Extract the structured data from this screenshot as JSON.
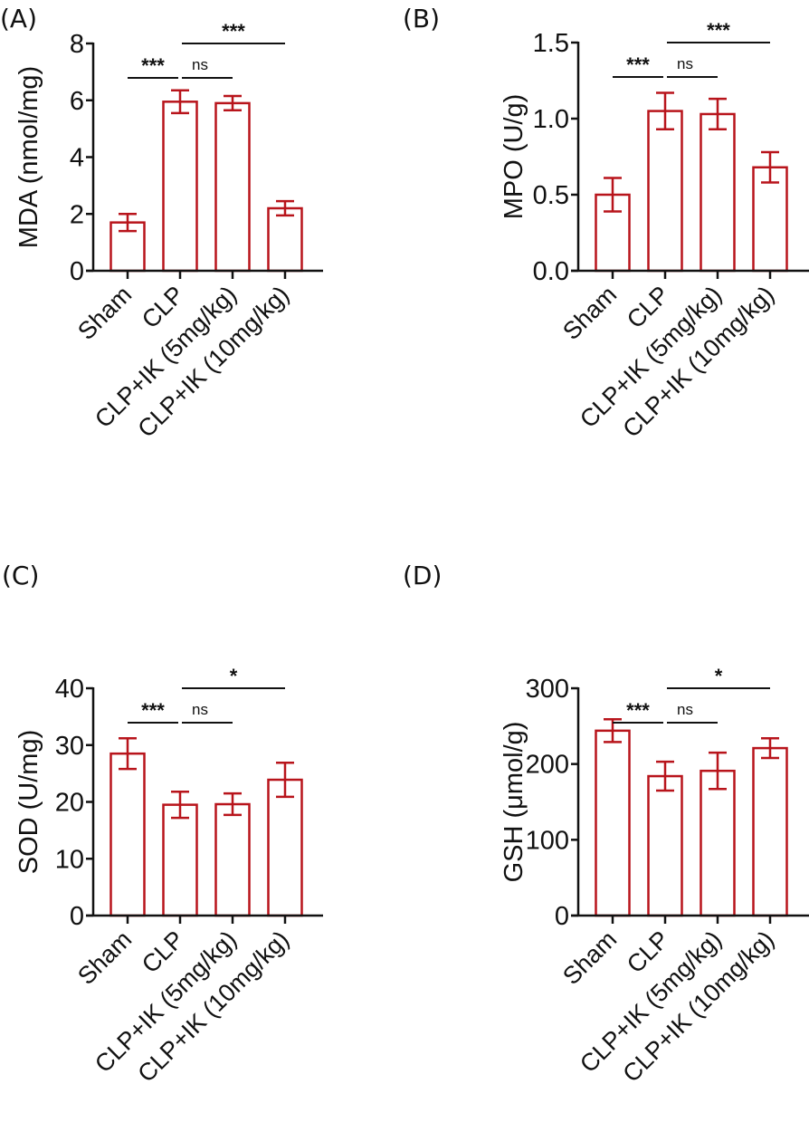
{
  "bar_color": "#B8141B",
  "axis_color": "#111111",
  "chart_data": [
    {
      "panel": "(A)",
      "type": "bar",
      "title": "",
      "xlabel": "",
      "ylabel": "MDA (nmol/mg)",
      "categories": [
        "Sham",
        "CLP",
        "CLP+IK (5mg/kg)",
        "CLP+IK (10mg/kg)"
      ],
      "values": [
        1.7,
        5.95,
        5.9,
        2.2
      ],
      "errors": [
        0.3,
        0.4,
        0.25,
        0.25
      ],
      "ylim": [
        0,
        8
      ],
      "yticks": [
        0,
        2,
        4,
        6,
        8
      ],
      "ytick_labels": [
        "0",
        "2",
        "4",
        "6",
        "8"
      ],
      "grid": false,
      "significance": [
        {
          "from": 0,
          "to": 1,
          "label": "***",
          "level": 1
        },
        {
          "from": 1,
          "to": 2,
          "label": "ns",
          "level": 1
        },
        {
          "from": 1,
          "to": 3,
          "label": "***",
          "level": 2
        }
      ]
    },
    {
      "panel": "(B)",
      "type": "bar",
      "title": "",
      "xlabel": "",
      "ylabel": "MPO (U/g)",
      "categories": [
        "Sham",
        "CLP",
        "CLP+IK (5mg/kg)",
        "CLP+IK (10mg/kg)"
      ],
      "values": [
        0.5,
        1.05,
        1.03,
        0.68
      ],
      "errors": [
        0.11,
        0.12,
        0.1,
        0.1
      ],
      "ylim": [
        0,
        1.5
      ],
      "yticks": [
        0,
        0.5,
        1.0,
        1.5
      ],
      "ytick_labels": [
        "0.0",
        "0.5",
        "1.0",
        "1.5"
      ],
      "grid": false,
      "significance": [
        {
          "from": 0,
          "to": 1,
          "label": "***",
          "level": 1
        },
        {
          "from": 1,
          "to": 2,
          "label": "ns",
          "level": 1
        },
        {
          "from": 1,
          "to": 3,
          "label": "***",
          "level": 2
        }
      ]
    },
    {
      "panel": "(C)",
      "type": "bar",
      "title": "",
      "xlabel": "",
      "ylabel": "SOD (U/mg)",
      "categories": [
        "Sham",
        "CLP",
        "CLP+IK (5mg/kg)",
        "CLP+IK (10mg/kg)"
      ],
      "values": [
        28.5,
        19.5,
        19.6,
        23.9
      ],
      "errors": [
        2.7,
        2.3,
        1.9,
        3.0
      ],
      "ylim": [
        0,
        40
      ],
      "yticks": [
        0,
        10,
        20,
        30,
        40
      ],
      "ytick_labels": [
        "0",
        "10",
        "20",
        "30",
        "40"
      ],
      "grid": false,
      "significance": [
        {
          "from": 0,
          "to": 1,
          "label": "***",
          "level": 1
        },
        {
          "from": 1,
          "to": 2,
          "label": "ns",
          "level": 1
        },
        {
          "from": 1,
          "to": 3,
          "label": "*",
          "level": 2
        }
      ]
    },
    {
      "panel": "(D)",
      "type": "bar",
      "title": "",
      "xlabel": "",
      "ylabel": "GSH (μmol/g)",
      "categories": [
        "Sham",
        "CLP",
        "CLP+IK (5mg/kg)",
        "CLP+IK (10mg/kg)"
      ],
      "values": [
        244,
        184,
        191,
        221
      ],
      "errors": [
        15,
        19,
        24,
        13
      ],
      "ylim": [
        0,
        300
      ],
      "yticks": [
        0,
        100,
        200,
        300
      ],
      "ytick_labels": [
        "0",
        "100",
        "200",
        "300"
      ],
      "grid": false,
      "significance": [
        {
          "from": 0,
          "to": 1,
          "label": "***",
          "level": 1
        },
        {
          "from": 1,
          "to": 2,
          "label": "ns",
          "level": 1
        },
        {
          "from": 1,
          "to": 3,
          "label": "*",
          "level": 2
        }
      ]
    }
  ]
}
